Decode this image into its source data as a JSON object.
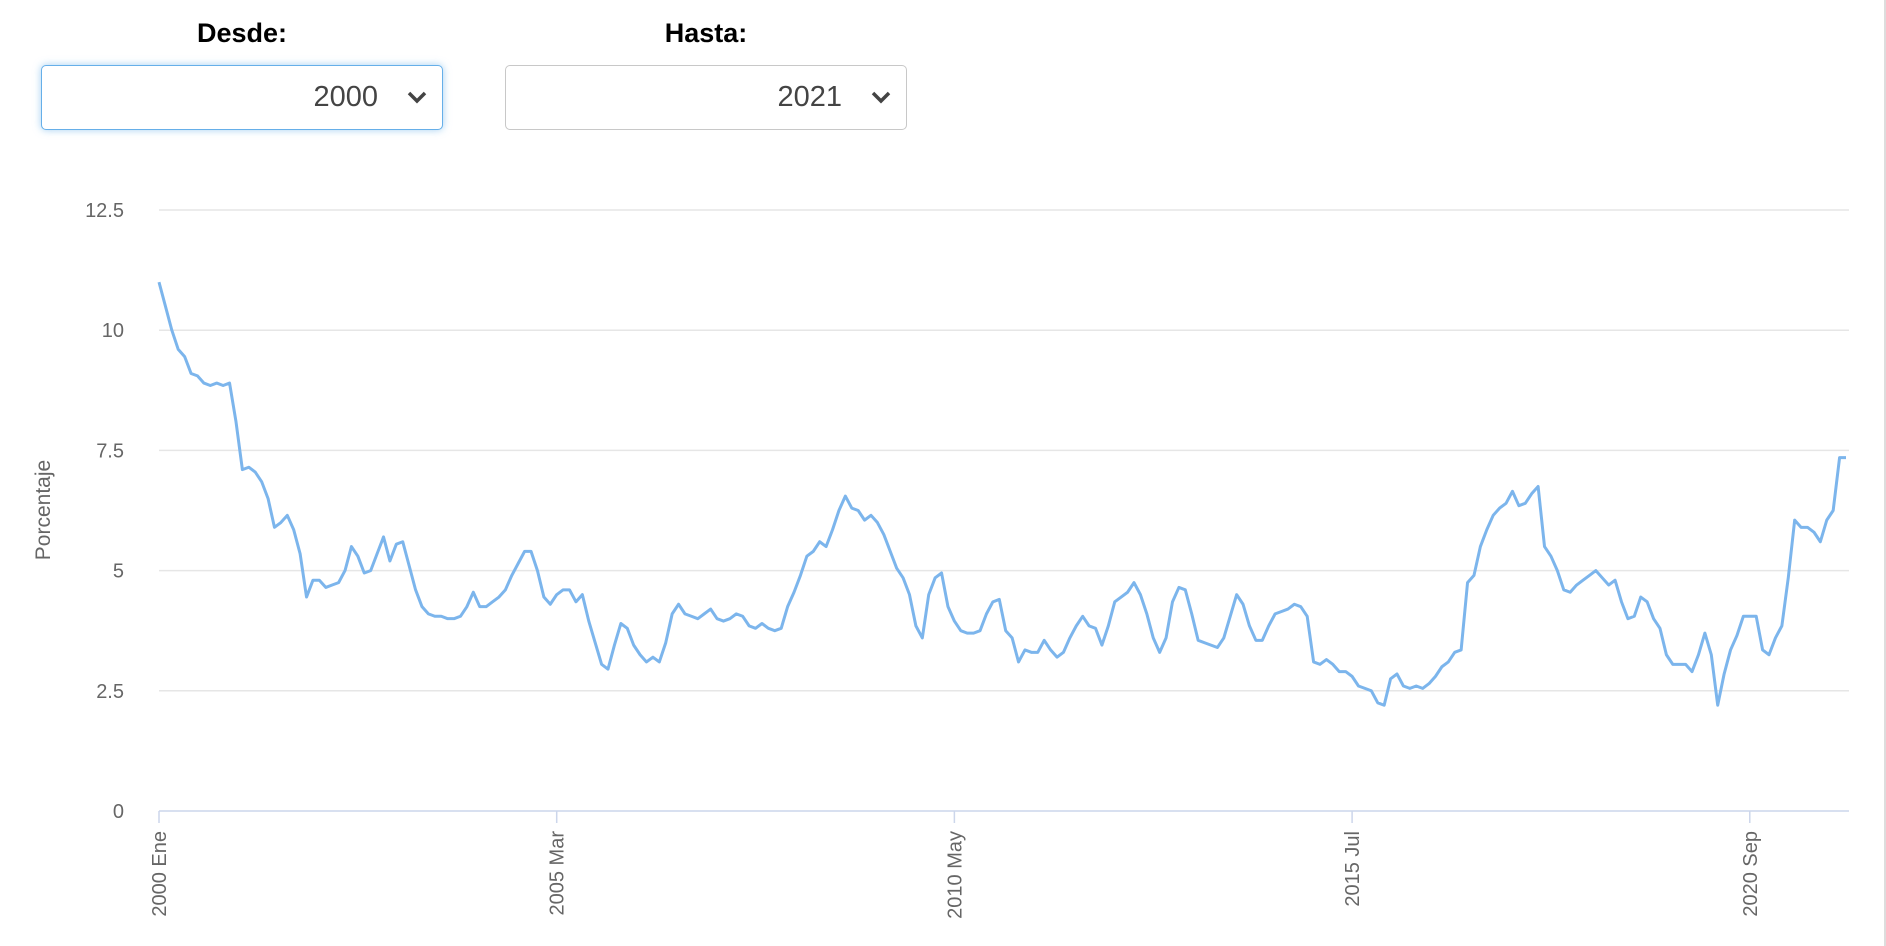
{
  "filters": {
    "from": {
      "label": "Desde:",
      "value": "2000"
    },
    "to": {
      "label": "Hasta:",
      "value": "2021"
    }
  },
  "chart_data": {
    "type": "line",
    "y_label": "Porcentaje",
    "color": "#7cb5ec",
    "grid": true,
    "ylim": [
      0,
      12.5
    ],
    "yticks": [
      0,
      2.5,
      5,
      7.5,
      10,
      12.5
    ],
    "categories": [
      "2000 Ene",
      null,
      null,
      null,
      null,
      null,
      null,
      null,
      null,
      null,
      null,
      null,
      null,
      null,
      null,
      null,
      null,
      null,
      null,
      null,
      null,
      null,
      null,
      null,
      null,
      null,
      null,
      null,
      null,
      null,
      null,
      null,
      null,
      null,
      null,
      null,
      null,
      null,
      null,
      null,
      null,
      null,
      null,
      null,
      null,
      null,
      null,
      null,
      null,
      null,
      null,
      null,
      null,
      null,
      null,
      null,
      null,
      null,
      null,
      null,
      null,
      null,
      "2005 Mar",
      null,
      null,
      null,
      null,
      null,
      null,
      null,
      null,
      null,
      null,
      null,
      null,
      null,
      null,
      null,
      null,
      null,
      null,
      null,
      null,
      null,
      null,
      null,
      null,
      null,
      null,
      null,
      null,
      null,
      null,
      null,
      null,
      null,
      null,
      null,
      null,
      null,
      null,
      null,
      null,
      null,
      null,
      null,
      null,
      null,
      null,
      null,
      null,
      null,
      null,
      null,
      null,
      null,
      null,
      null,
      null,
      null,
      null,
      null,
      null,
      null,
      "2010 May",
      null,
      null,
      null,
      null,
      null,
      null,
      null,
      null,
      null,
      null,
      null,
      null,
      null,
      null,
      null,
      null,
      null,
      null,
      null,
      null,
      null,
      null,
      null,
      null,
      null,
      null,
      null,
      null,
      null,
      null,
      null,
      null,
      null,
      null,
      null,
      null,
      null,
      null,
      null,
      null,
      null,
      null,
      null,
      null,
      null,
      null,
      null,
      null,
      null,
      null,
      null,
      null,
      null,
      null,
      null,
      null,
      null,
      null,
      null,
      null,
      null,
      "2015 Jul",
      null,
      null,
      null,
      null,
      null,
      null,
      null,
      null,
      null,
      null,
      null,
      null,
      null,
      null,
      null,
      null,
      null,
      null,
      null,
      null,
      null,
      null,
      null,
      null,
      null,
      null,
      null,
      null,
      null,
      null,
      null,
      null,
      null,
      null,
      null,
      null,
      null,
      null,
      null,
      null,
      null,
      null,
      null,
      null,
      null,
      null,
      null,
      null,
      null,
      null,
      null,
      null,
      null,
      null,
      null,
      null,
      null,
      null,
      null,
      null,
      null,
      "2020 Sep",
      null,
      null,
      null,
      null,
      null,
      null,
      null,
      null,
      null,
      null,
      null,
      null,
      null,
      null,
      null
    ],
    "values": [
      11.0,
      10.5,
      10.0,
      9.6,
      9.45,
      9.1,
      9.05,
      8.9,
      8.85,
      8.9,
      8.85,
      8.9,
      8.1,
      7.1,
      7.15,
      7.05,
      6.85,
      6.5,
      5.9,
      6.0,
      6.15,
      5.85,
      5.35,
      4.45,
      4.8,
      4.8,
      4.65,
      4.7,
      4.75,
      5.0,
      5.5,
      5.3,
      4.95,
      5.0,
      5.35,
      5.7,
      5.2,
      5.55,
      5.6,
      5.1,
      4.6,
      4.25,
      4.1,
      4.05,
      4.05,
      4.0,
      4.0,
      4.05,
      4.25,
      4.55,
      4.25,
      4.25,
      4.35,
      4.45,
      4.6,
      4.9,
      5.15,
      5.4,
      5.4,
      5.0,
      4.45,
      4.3,
      4.5,
      4.6,
      4.6,
      4.35,
      4.5,
      3.95,
      3.5,
      3.05,
      2.95,
      3.45,
      3.9,
      3.8,
      3.45,
      3.25,
      3.1,
      3.2,
      3.1,
      3.5,
      4.1,
      4.3,
      4.1,
      4.05,
      4.0,
      4.1,
      4.2,
      4.0,
      3.95,
      4.0,
      4.1,
      4.05,
      3.85,
      3.8,
      3.9,
      3.8,
      3.75,
      3.8,
      4.25,
      4.55,
      4.9,
      5.3,
      5.4,
      5.6,
      5.5,
      5.85,
      6.25,
      6.55,
      6.3,
      6.25,
      6.05,
      6.15,
      6.0,
      5.75,
      5.4,
      5.05,
      4.85,
      4.5,
      3.85,
      3.6,
      4.5,
      4.85,
      4.95,
      4.25,
      3.95,
      3.75,
      3.7,
      3.7,
      3.75,
      4.1,
      4.35,
      4.4,
      3.75,
      3.6,
      3.1,
      3.35,
      3.3,
      3.3,
      3.55,
      3.35,
      3.2,
      3.3,
      3.6,
      3.85,
      4.05,
      3.85,
      3.8,
      3.45,
      3.85,
      4.35,
      4.45,
      4.55,
      4.75,
      4.5,
      4.1,
      3.6,
      3.3,
      3.6,
      4.35,
      4.65,
      4.6,
      4.1,
      3.55,
      3.5,
      3.45,
      3.4,
      3.6,
      4.05,
      4.5,
      4.3,
      3.85,
      3.55,
      3.55,
      3.85,
      4.1,
      4.15,
      4.2,
      4.3,
      4.25,
      4.05,
      3.1,
      3.05,
      3.15,
      3.05,
      2.9,
      2.9,
      2.8,
      2.6,
      2.55,
      2.5,
      2.25,
      2.2,
      2.75,
      2.85,
      2.6,
      2.55,
      2.6,
      2.55,
      2.65,
      2.8,
      3.0,
      3.1,
      3.3,
      3.35,
      4.75,
      4.9,
      5.5,
      5.85,
      6.15,
      6.3,
      6.4,
      6.65,
      6.35,
      6.4,
      6.6,
      6.75,
      5.5,
      5.3,
      5.0,
      4.6,
      4.55,
      4.7,
      4.8,
      4.9,
      5.0,
      4.85,
      4.7,
      4.8,
      4.35,
      4.0,
      4.05,
      4.45,
      4.35,
      4.0,
      3.8,
      3.25,
      3.05,
      3.05,
      3.05,
      2.9,
      3.25,
      3.7,
      3.25,
      2.2,
      2.85,
      3.35,
      3.65,
      4.05,
      4.05,
      4.05,
      3.35,
      3.25,
      3.6,
      3.85,
      4.85,
      6.05,
      5.9,
      5.9,
      5.8,
      5.6,
      6.05,
      6.25,
      7.35,
      7.35
    ]
  }
}
